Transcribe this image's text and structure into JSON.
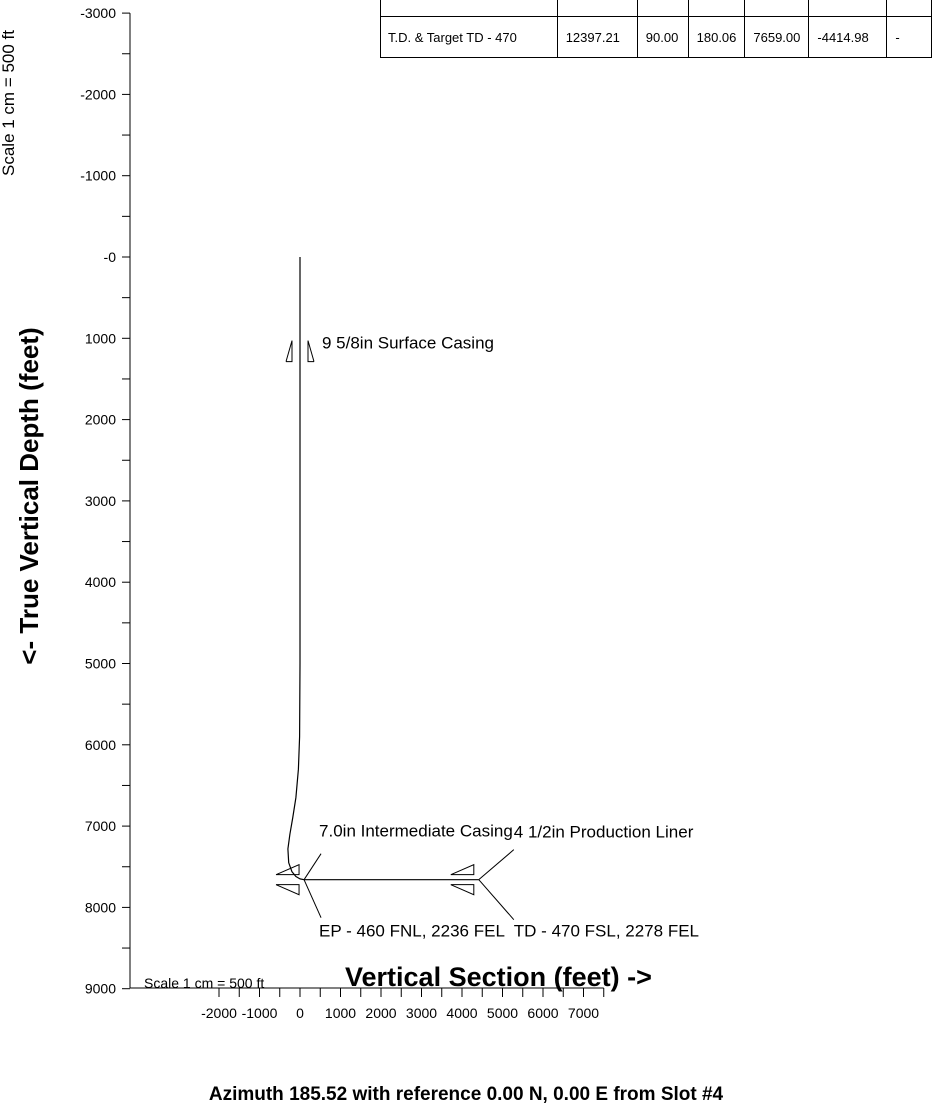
{
  "chart_data": {
    "type": "line",
    "title": "",
    "xlabel": "Vertical Section (feet) ->",
    "ylabel": "<- True Vertical Depth (feet)",
    "subtitle": "Azimuth 185.52 with reference 0.00 N, 0.00 E from Slot #4",
    "x_scale_note": "Scale 1 cm = 500 ft",
    "y_scale_note": "Scale 1 cm = 500 ft",
    "xlim": [
      -2000,
      7500
    ],
    "ylim": [
      -3000,
      9000
    ],
    "y_inverted": true,
    "x_ticks": [
      "-2000",
      "-1000",
      "0",
      "1000",
      "2000",
      "3000",
      "4000",
      "5000",
      "6000",
      "7000"
    ],
    "y_ticks": [
      "-3000",
      "-2000",
      "-1000",
      "-0",
      "1000",
      "2000",
      "3000",
      "4000",
      "5000",
      "6000",
      "7000",
      "8000",
      "9000"
    ],
    "series": [
      {
        "x": [
          0,
          0,
          0,
          -10,
          -40,
          -100,
          -180,
          -250,
          -300,
          -280,
          -200,
          -100,
          0,
          100,
          4415
        ],
        "y": [
          0,
          1000,
          5000,
          5900,
          6300,
          6650,
          6900,
          7100,
          7280,
          7450,
          7560,
          7620,
          7650,
          7659,
          7659
        ]
      }
    ],
    "markers": [
      {
        "label": "9 5/8in Surface Casing",
        "x": 0,
        "y": 1250
      },
      {
        "label": "7.0in Intermediate Casing",
        "x": 100,
        "y": 7659
      },
      {
        "label": "EP - 460 FNL, 2236 FEL",
        "x": 100,
        "y": 7659
      },
      {
        "label": "4 1/2in Production Liner",
        "x": 4415,
        "y": 7659
      },
      {
        "label": "TD - 470 FSL, 2278 FEL",
        "x": 4415,
        "y": 7659
      }
    ],
    "grid": false,
    "target_table": {
      "rows": [
        [
          "T.D. & Target TD - 470",
          "12397.21",
          "90.00",
          "180.06",
          "7659.00",
          "-4414.98",
          "-"
        ]
      ]
    }
  }
}
